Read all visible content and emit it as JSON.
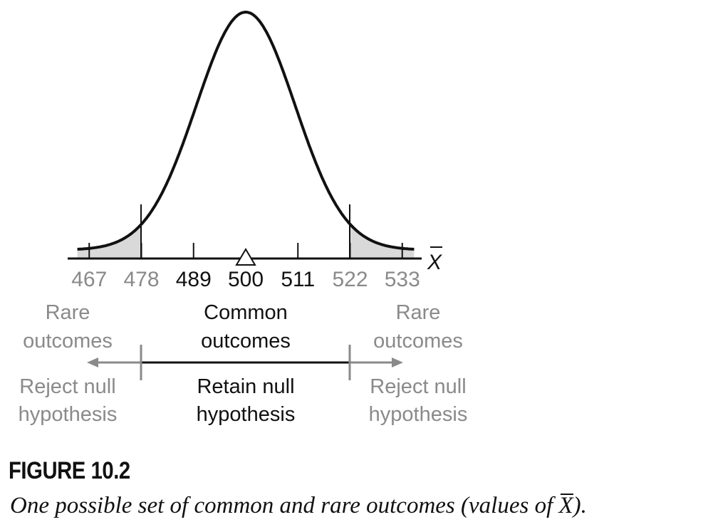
{
  "chart_data": {
    "type": "area",
    "distribution": "normal",
    "mean": 500,
    "standard_error": 11,
    "ticks": [
      467,
      478,
      489,
      500,
      511,
      522,
      533
    ],
    "critical_values": [
      478,
      522
    ],
    "xlabel": "X",
    "colors": {
      "curve": "#111111",
      "shade": "#d9d9d9",
      "common_text": "#111111",
      "rare_text": "#8a8a8a"
    },
    "regions": {
      "left": {
        "line1": "Rare",
        "line2": "outcomes",
        "decision1": "Reject null",
        "decision2": "hypothesis"
      },
      "center": {
        "line1": "Common",
        "line2": "outcomes",
        "decision1": "Retain null",
        "decision2": "hypothesis"
      },
      "right": {
        "line1": "Rare",
        "line2": "outcomes",
        "decision1": "Reject null",
        "decision2": "hypothesis"
      }
    }
  },
  "figure": {
    "label": "FIGURE 10.2",
    "caption_before": "One possible set of common and rare outcomes (values of ",
    "caption_symbol": "X",
    "caption_after": ")."
  }
}
